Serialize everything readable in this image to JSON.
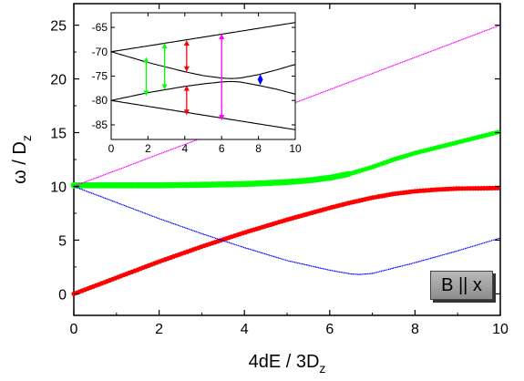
{
  "chart_data": [
    {
      "type": "scatter",
      "panel": "main",
      "xlabel": "4dE / 3D",
      "xlabel_sub": "z",
      "ylabel": "ω / D",
      "ylabel_sub": "z",
      "xlim": [
        0,
        10
      ],
      "ylim": [
        -2,
        27
      ],
      "xticks": [
        0,
        2,
        4,
        6,
        8,
        10
      ],
      "yticks": [
        0,
        5,
        10,
        15,
        20,
        25
      ],
      "annotation": "B || x",
      "grid": false,
      "series": [
        {
          "style": "thick dots",
          "color": "#00ff00",
          "x": [
            0,
            0.5,
            1,
            1.5,
            2,
            2.5,
            3,
            3.5,
            4,
            4.5,
            5,
            5.5,
            6,
            6.5,
            7,
            7.5,
            8,
            8.5,
            9,
            9.5,
            10
          ],
          "y": [
            10.1,
            10.1,
            10.1,
            10.1,
            10.1,
            10.12,
            10.15,
            10.18,
            10.22,
            10.3,
            10.4,
            10.55,
            10.8,
            11.2,
            11.8,
            12.5,
            13.1,
            13.6,
            14.1,
            14.6,
            15.1
          ]
        },
        {
          "style": "thick dots",
          "color": "#ff0000",
          "x": [
            0,
            0.5,
            1,
            1.5,
            2,
            2.5,
            3,
            3.5,
            4,
            4.5,
            5,
            5.5,
            6,
            6.5,
            7,
            7.5,
            8,
            8.5,
            9,
            9.5,
            10
          ],
          "y": [
            0,
            0.75,
            1.5,
            2.25,
            3.0,
            3.7,
            4.4,
            5.05,
            5.7,
            6.3,
            6.9,
            7.45,
            8.0,
            8.5,
            8.95,
            9.3,
            9.55,
            9.7,
            9.8,
            9.82,
            9.85
          ]
        },
        {
          "style": "dotted",
          "color": "#ff00ff",
          "x": [
            0,
            10
          ],
          "y": [
            10,
            25
          ]
        },
        {
          "style": "dotted",
          "color": "#0000ff",
          "x": [
            0,
            1,
            2,
            3,
            4,
            5,
            6,
            6.5,
            6.7,
            7,
            8,
            9,
            10
          ],
          "y": [
            10,
            8.5,
            7.0,
            5.6,
            4.3,
            3.1,
            2.2,
            1.85,
            1.8,
            1.9,
            2.9,
            4.0,
            5.2
          ]
        }
      ]
    },
    {
      "type": "line",
      "panel": "inset",
      "xlim": [
        0,
        10
      ],
      "ylim": [
        -88,
        -62
      ],
      "xticks": [
        0,
        2,
        4,
        6,
        8,
        10
      ],
      "yticks": [
        -65,
        -70,
        -75,
        -80,
        -85
      ],
      "series": [
        {
          "color": "#000000",
          "x": [
            0,
            10
          ],
          "y": [
            -70,
            -64
          ]
        },
        {
          "color": "#000000",
          "x": [
            0,
            10
          ],
          "y": [
            -80,
            -86
          ]
        },
        {
          "color": "#000000",
          "x": [
            0,
            2,
            4,
            5,
            6,
            6.5,
            7,
            8,
            9,
            10
          ],
          "y": [
            -70,
            -72.2,
            -74.1,
            -74.9,
            -75.4,
            -75.5,
            -75.4,
            -74.7,
            -73.7,
            -72.6
          ]
        },
        {
          "color": "#000000",
          "x": [
            0,
            2,
            4,
            5,
            6,
            6.5,
            7,
            8,
            9,
            10
          ],
          "y": [
            -80,
            -78.4,
            -77.1,
            -76.6,
            -76.2,
            -76.1,
            -76.2,
            -76.9,
            -77.7,
            -78.7
          ]
        }
      ],
      "arrows": [
        {
          "color": "#00ff00",
          "x": 1.9,
          "y1": -71.1,
          "y2": -79.1
        },
        {
          "color": "#00ff00",
          "x": 2.9,
          "y1": -68.2,
          "y2": -77.8
        },
        {
          "color": "#ff0000",
          "x": 4.1,
          "y1": -67.6,
          "y2": -74.1
        },
        {
          "color": "#ff0000",
          "x": 4.1,
          "y1": -76.9,
          "y2": -83.0
        },
        {
          "color": "#ff00ff",
          "x": 6.0,
          "y1": -66.3,
          "y2": -84.1
        },
        {
          "color": "#0000ff",
          "x": 8.1,
          "y1": -74.6,
          "y2": -76.8
        }
      ]
    }
  ]
}
